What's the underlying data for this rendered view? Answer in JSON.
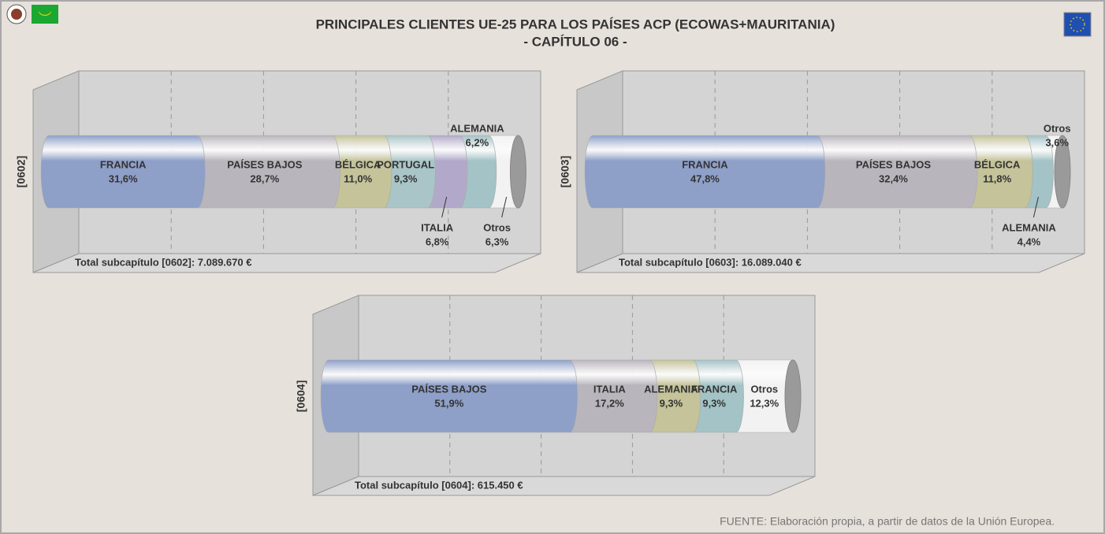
{
  "title": "PRINCIPALES CLIENTES UE-25 PARA LOS PAÍSES ACP (ECOWAS+MAURITANIA)",
  "subtitle": "- CAPÍTULO 06 -",
  "source": "FUENTE: Elaboración propia, a partir de datos de la Unión Europea.",
  "chart_data": [
    {
      "type": "stacked-bar",
      "y_label": "[0602]",
      "total_label": "Total subcapítulo [0602]: 7.089.670 €",
      "xlim": [
        0,
        100
      ],
      "xticks": [
        0,
        20,
        40,
        60,
        80,
        100
      ],
      "grid": true,
      "series": [
        {
          "name": "FRANCIA",
          "color": "#8e9fc8",
          "values": [
            31.6
          ],
          "value_labels": [
            "31,6%"
          ]
        },
        {
          "name": "PAÍSES BAJOS",
          "color": "#b9b5bd",
          "values": [
            28.7
          ],
          "value_labels": [
            "28,7%"
          ]
        },
        {
          "name": "BÉLGICA",
          "color": "#c4c39a",
          "values": [
            11.0
          ],
          "value_labels": [
            "11,0%"
          ]
        },
        {
          "name": "PORTUGAL",
          "color": "#a9c5c7",
          "values": [
            9.3
          ],
          "value_labels": [
            "9,3%"
          ]
        },
        {
          "name": "ITALIA",
          "color": "#b2a9ca",
          "values": [
            6.8
          ],
          "value_labels": [
            "6,8%"
          ]
        },
        {
          "name": "ALEMANIA",
          "color": "#a3c3c6",
          "values": [
            6.2
          ],
          "value_labels": [
            "6,2%"
          ]
        },
        {
          "name": "Otros",
          "color": "#f2f2f2",
          "values": [
            6.3
          ],
          "value_labels": [
            "6,3%"
          ]
        }
      ]
    },
    {
      "type": "stacked-bar",
      "y_label": "[0603]",
      "total_label": "Total subcapítulo [0603]: 16.089.040 €",
      "xlim": [
        0,
        100
      ],
      "xticks": [
        0,
        20,
        40,
        60,
        80,
        100
      ],
      "grid": true,
      "series": [
        {
          "name": "FRANCIA",
          "color": "#8e9fc8",
          "values": [
            47.8
          ],
          "value_labels": [
            "47,8%"
          ]
        },
        {
          "name": "PAÍSES BAJOS",
          "color": "#b9b5bd",
          "values": [
            32.4
          ],
          "value_labels": [
            "32,4%"
          ]
        },
        {
          "name": "BÉLGICA",
          "color": "#c4c39a",
          "values": [
            11.8
          ],
          "value_labels": [
            "11,8%"
          ]
        },
        {
          "name": "ALEMANIA",
          "color": "#a3c3c6",
          "values": [
            4.4
          ],
          "value_labels": [
            "4,4%"
          ]
        },
        {
          "name": "Otros",
          "color": "#f2f2f2",
          "values": [
            3.6
          ],
          "value_labels": [
            "3,6%"
          ]
        }
      ]
    },
    {
      "type": "stacked-bar",
      "y_label": "[0604]",
      "total_label": "Total subcapítulo [0604]: 615.450 €",
      "xlim": [
        0,
        100
      ],
      "xticks": [
        0,
        20,
        40,
        60,
        80,
        100
      ],
      "grid": true,
      "series": [
        {
          "name": "PAÍSES BAJOS",
          "color": "#8e9fc8",
          "values": [
            51.9
          ],
          "value_labels": [
            "51,9%"
          ]
        },
        {
          "name": "ITALIA",
          "color": "#b9b5bd",
          "values": [
            17.2
          ],
          "value_labels": [
            "17,2%"
          ]
        },
        {
          "name": "ALEMANIA",
          "color": "#c4c39a",
          "values": [
            9.3
          ],
          "value_labels": [
            "9,3%"
          ]
        },
        {
          "name": "FRANCIA",
          "color": "#a3c3c6",
          "values": [
            9.3
          ],
          "value_labels": [
            "9,3%"
          ]
        },
        {
          "name": "Otros",
          "color": "#f2f2f2",
          "values": [
            12.3
          ],
          "value_labels": [
            "12,3%"
          ]
        }
      ]
    }
  ]
}
